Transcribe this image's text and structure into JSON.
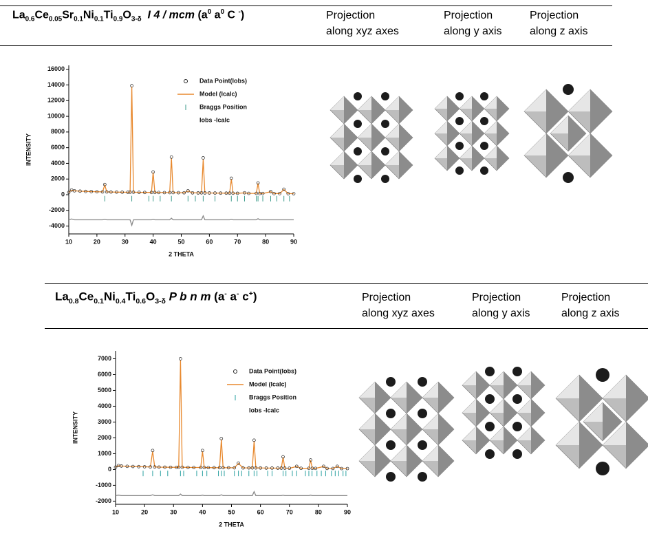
{
  "panels": [
    {
      "formula": [
        {
          "text": "La"
        },
        {
          "text": "0.6",
          "style": "sub"
        },
        {
          "text": "Ce"
        },
        {
          "text": "0.05",
          "style": "sub"
        },
        {
          "text": "Sr"
        },
        {
          "text": "0.1",
          "style": "sub"
        },
        {
          "text": "Ni"
        },
        {
          "text": "0.1",
          "style": "sub"
        },
        {
          "text": "Ti"
        },
        {
          "text": "0.9",
          "style": "sub"
        },
        {
          "text": "O"
        },
        {
          "text": "3-δ",
          "style": "sub"
        },
        {
          "text": "  I 4 / mcm",
          "style": "italic"
        },
        {
          "text": " (a"
        },
        {
          "text": "0",
          "style": "sup"
        },
        {
          "text": " a"
        },
        {
          "text": "0",
          "style": "sup"
        },
        {
          "text": " C "
        },
        {
          "text": "-",
          "style": "sup"
        },
        {
          "text": ")"
        }
      ],
      "projections": [
        "Projection along xyz axes",
        "Projection along y axis",
        "Projection along z axis"
      ]
    },
    {
      "formula": [
        {
          "text": "La"
        },
        {
          "text": "0.8",
          "style": "sub"
        },
        {
          "text": "Ce"
        },
        {
          "text": "0.1",
          "style": "sub"
        },
        {
          "text": "Ni"
        },
        {
          "text": "0.4",
          "style": "sub"
        },
        {
          "text": "Ti"
        },
        {
          "text": "0.6",
          "style": "sub"
        },
        {
          "text": "O"
        },
        {
          "text": "3-δ",
          "style": "sub"
        },
        {
          "text": " P b n m",
          "style": "italic"
        },
        {
          "text": " (a"
        },
        {
          "text": "-",
          "style": "sup"
        },
        {
          "text": " a"
        },
        {
          "text": "-",
          "style": "sup"
        },
        {
          "text": " c"
        },
        {
          "text": "+",
          "style": "sup"
        },
        {
          "text": ")"
        }
      ],
      "projections": [
        "Projection along xyz axes",
        "Projection along y axis",
        "Projection along z axis"
      ]
    }
  ],
  "chart_data": [
    {
      "type": "line",
      "xlabel": "2 THETA",
      "ylabel": "INTENSITY",
      "xlim": [
        10,
        90
      ],
      "xticks": [
        10,
        20,
        30,
        40,
        50,
        60,
        70,
        80,
        90
      ],
      "ylim": [
        -5000,
        16500
      ],
      "yticks": [
        -4000,
        -2000,
        0,
        2000,
        4000,
        6000,
        8000,
        10000,
        12000,
        14000,
        16000
      ],
      "legend": "upper right",
      "series": [
        {
          "name": "Data Point(Iobs)",
          "style": "markers",
          "color": "#222222",
          "x": [
            10,
            11,
            12,
            14,
            16,
            18,
            20,
            22,
            22.8,
            23.5,
            25,
            27,
            29,
            31,
            31.8,
            32.4,
            33,
            35,
            37,
            39.4,
            40,
            40.6,
            42,
            44,
            45.9,
            46.5,
            47.1,
            49,
            51,
            52.4,
            54,
            56,
            57.2,
            57.8,
            58.4,
            60,
            62,
            64,
            66,
            67.2,
            67.8,
            68.4,
            70,
            72.5,
            74,
            76.7,
            77.3,
            77.9,
            79,
            81.8,
            83,
            85,
            86.5,
            88,
            90
          ],
          "values": [
            300,
            600,
            500,
            450,
            420,
            400,
            380,
            360,
            1300,
            360,
            340,
            330,
            320,
            310,
            320,
            13900,
            320,
            300,
            290,
            290,
            2900,
            290,
            280,
            270,
            270,
            4800,
            270,
            260,
            250,
            500,
            240,
            230,
            240,
            4700,
            230,
            220,
            210,
            200,
            200,
            200,
            2100,
            190,
            180,
            250,
            170,
            170,
            1500,
            160,
            160,
            400,
            150,
            150,
            700,
            140,
            130
          ]
        },
        {
          "name": "Model (Icalc)",
          "style": "line",
          "color": "#e8892e",
          "x": [
            10,
            11,
            12,
            14,
            16,
            18,
            20,
            22,
            22.8,
            23.5,
            25,
            27,
            29,
            31,
            31.8,
            32.4,
            33,
            35,
            37,
            39.4,
            40,
            40.6,
            42,
            44,
            45.9,
            46.5,
            47.1,
            49,
            51,
            52.4,
            54,
            56,
            57.2,
            57.8,
            58.4,
            60,
            62,
            64,
            66,
            67.2,
            67.8,
            68.4,
            70,
            72.5,
            74,
            76.7,
            77.3,
            77.9,
            79,
            81.8,
            83,
            85,
            86.5,
            88,
            90
          ],
          "values": [
            300,
            580,
            500,
            450,
            420,
            400,
            380,
            360,
            1250,
            360,
            340,
            330,
            320,
            310,
            320,
            13800,
            320,
            300,
            290,
            290,
            2850,
            290,
            280,
            270,
            270,
            4700,
            270,
            260,
            250,
            480,
            240,
            230,
            240,
            4500,
            230,
            220,
            210,
            200,
            200,
            200,
            2000,
            190,
            180,
            240,
            170,
            170,
            1450,
            160,
            160,
            380,
            150,
            150,
            660,
            140,
            130
          ]
        },
        {
          "name": "Braggs Position",
          "style": "ticks",
          "color": "#3a9a8a",
          "x": [
            22.8,
            32.4,
            38.5,
            40.0,
            42.5,
            46.5,
            52.4,
            55.0,
            57.8,
            62.0,
            67.8,
            70.0,
            72.5,
            76.7,
            77.3,
            79.0,
            81.8,
            84.0,
            86.5,
            88.5
          ],
          "values": [
            -500,
            -500,
            -500,
            -500,
            -500,
            -500,
            -500,
            -500,
            -500,
            -500,
            -500,
            -500,
            -500,
            -500,
            -500,
            -500,
            -500,
            -500,
            -500,
            -500
          ]
        },
        {
          "name": "Iobs -Icalc",
          "style": "line",
          "color": "#888888",
          "x": [
            10,
            11,
            12,
            14,
            16,
            18,
            20,
            22,
            22.8,
            23.5,
            25,
            27,
            29,
            31,
            31.8,
            32.4,
            33,
            35,
            37,
            39.4,
            40,
            40.6,
            42,
            44,
            45.9,
            46.5,
            47.1,
            49,
            51,
            52.4,
            54,
            56,
            57.2,
            57.8,
            58.4,
            60,
            62,
            64,
            66,
            67.2,
            67.8,
            68.4,
            70,
            72.5,
            74,
            76.7,
            77.3,
            77.9,
            79,
            81.8,
            83,
            85,
            86.5,
            88,
            90
          ],
          "values": [
            -3200,
            -3100,
            -3200,
            -3200,
            -3200,
            -3200,
            -3200,
            -3200,
            -3150,
            -3200,
            -3200,
            -3200,
            -3200,
            -3200,
            -3200,
            -3900,
            -3200,
            -3200,
            -3200,
            -3200,
            -3150,
            -3200,
            -3200,
            -3200,
            -3200,
            -3000,
            -3200,
            -3200,
            -3200,
            -3200,
            -3200,
            -3200,
            -3200,
            -2700,
            -3200,
            -3200,
            -3200,
            -3200,
            -3200,
            -3200,
            -3150,
            -3200,
            -3200,
            -3200,
            -3200,
            -3200,
            -3050,
            -3200,
            -3200,
            -3200,
            -3200,
            -3200,
            -3200,
            -3200,
            -3200
          ]
        }
      ]
    },
    {
      "type": "line",
      "xlabel": "2 THETA",
      "ylabel": "INTENSITY",
      "xlim": [
        10,
        90
      ],
      "xticks": [
        10,
        20,
        30,
        40,
        50,
        60,
        70,
        80,
        90
      ],
      "ylim": [
        -2200,
        7500
      ],
      "yticks": [
        -2000,
        -1000,
        0,
        1000,
        2000,
        3000,
        4000,
        5000,
        6000,
        7000
      ],
      "legend": "upper right",
      "series": [
        {
          "name": "Data Point(Iobs)",
          "style": "markers",
          "color": "#222222",
          "x": [
            10,
            11,
            12,
            14,
            16,
            18,
            20,
            22,
            22.8,
            23.5,
            25,
            27,
            29,
            31,
            31.8,
            32.4,
            33,
            35,
            37,
            39.4,
            40,
            40.6,
            42,
            44,
            45.9,
            46.5,
            47.1,
            49,
            51,
            52.4,
            54,
            56,
            57.2,
            57.8,
            58.4,
            60,
            62,
            64,
            66,
            67.2,
            67.8,
            68.4,
            70,
            72.5,
            74,
            76.7,
            77.3,
            77.9,
            79,
            81.8,
            83,
            85,
            86.5,
            88,
            90
          ],
          "values": [
            150,
            250,
            220,
            200,
            190,
            180,
            170,
            160,
            1200,
            160,
            150,
            145,
            140,
            135,
            140,
            7000,
            140,
            130,
            125,
            125,
            1200,
            125,
            120,
            115,
            115,
            1950,
            115,
            110,
            105,
            400,
            100,
            100,
            100,
            1850,
            100,
            95,
            90,
            90,
            85,
            85,
            800,
            85,
            80,
            200,
            75,
            75,
            600,
            75,
            70,
            200,
            65,
            65,
            200,
            60,
            60
          ]
        },
        {
          "name": "Model (Icalc)",
          "style": "line",
          "color": "#e8892e",
          "x": [
            10,
            11,
            12,
            14,
            16,
            18,
            20,
            22,
            22.8,
            23.5,
            25,
            27,
            29,
            31,
            31.8,
            32.4,
            33,
            35,
            37,
            39.4,
            40,
            40.6,
            42,
            44,
            45.9,
            46.5,
            47.1,
            49,
            51,
            52.4,
            54,
            56,
            57.2,
            57.8,
            58.4,
            60,
            62,
            64,
            66,
            67.2,
            67.8,
            68.4,
            70,
            72.5,
            74,
            76.7,
            77.3,
            77.9,
            79,
            81.8,
            83,
            85,
            86.5,
            88,
            90
          ],
          "values": [
            150,
            240,
            220,
            200,
            190,
            180,
            170,
            160,
            1150,
            160,
            150,
            145,
            140,
            135,
            140,
            6900,
            140,
            130,
            125,
            125,
            1150,
            125,
            120,
            115,
            115,
            1900,
            115,
            110,
            105,
            380,
            100,
            100,
            100,
            1800,
            100,
            95,
            90,
            90,
            85,
            85,
            780,
            85,
            80,
            190,
            75,
            75,
            580,
            75,
            70,
            190,
            65,
            65,
            190,
            60,
            60
          ]
        },
        {
          "name": "Braggs Position",
          "style": "ticks",
          "color": "#2aa0a0",
          "x": [
            19.5,
            22.8,
            25.5,
            28.0,
            32.4,
            33.5,
            38.0,
            40.0,
            41.5,
            45.5,
            46.5,
            47.5,
            51.0,
            52.4,
            53.5,
            56.0,
            57.8,
            58.8,
            62.5,
            64.0,
            67.8,
            68.8,
            71.0,
            72.5,
            75.5,
            76.7,
            77.8,
            79.5,
            81.0,
            82.5,
            84.5,
            85.8,
            87.0,
            88.5,
            89.5
          ],
          "values": [
            -250,
            -250,
            -250,
            -250,
            -250,
            -250,
            -250,
            -250,
            -250,
            -250,
            -250,
            -250,
            -250,
            -250,
            -250,
            -250,
            -250,
            -250,
            -250,
            -250,
            -250,
            -250,
            -250,
            -250,
            -250,
            -250,
            -250,
            -250,
            -250,
            -250,
            -250,
            -250,
            -250,
            -250,
            -250
          ]
        },
        {
          "name": "Iobs -Icalc",
          "style": "line",
          "color": "#888888",
          "x": [
            10,
            11,
            12,
            14,
            16,
            18,
            20,
            22,
            22.8,
            23.5,
            25,
            27,
            29,
            31,
            31.8,
            32.4,
            33,
            35,
            37,
            39.4,
            40,
            40.6,
            42,
            44,
            45.9,
            46.5,
            47.1,
            49,
            51,
            52.4,
            54,
            56,
            57.2,
            57.8,
            58.4,
            60,
            62,
            64,
            66,
            67.2,
            67.8,
            68.4,
            70,
            72.5,
            74,
            76.7,
            77.3,
            77.9,
            79,
            81.8,
            83,
            85,
            86.5,
            88,
            90
          ],
          "values": [
            -1650,
            -1620,
            -1650,
            -1650,
            -1650,
            -1650,
            -1650,
            -1650,
            -1600,
            -1650,
            -1650,
            -1650,
            -1650,
            -1650,
            -1650,
            -1550,
            -1650,
            -1650,
            -1650,
            -1650,
            -1620,
            -1650,
            -1650,
            -1650,
            -1650,
            -1600,
            -1650,
            -1650,
            -1650,
            -1650,
            -1650,
            -1650,
            -1650,
            -1400,
            -1650,
            -1650,
            -1650,
            -1650,
            -1650,
            -1650,
            -1630,
            -1650,
            -1650,
            -1650,
            -1650,
            -1650,
            -1620,
            -1650,
            -1650,
            -1650,
            -1650,
            -1650,
            -1650,
            -1650,
            -1650
          ]
        }
      ]
    }
  ]
}
